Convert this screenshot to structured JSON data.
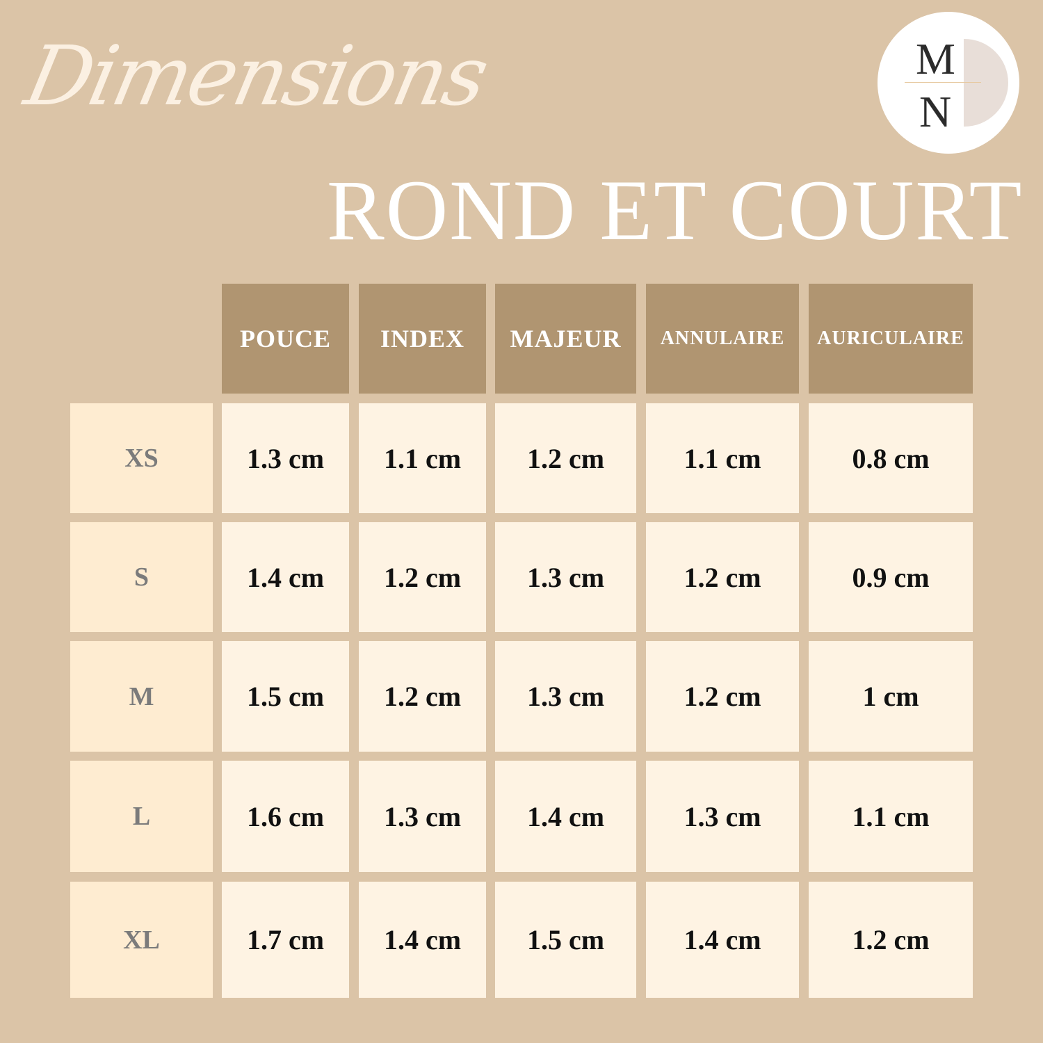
{
  "heading_script": "Dimensions",
  "title": "ROND ET COURT",
  "logo": {
    "top_letter": "M",
    "bottom_letter": "N"
  },
  "colors": {
    "background": "#dbc4a7",
    "header": "#b09571",
    "size_cell": "#feecd1",
    "value_cell": "#fef3e3"
  },
  "table": {
    "columns": [
      "POUCE",
      "INDEX",
      "MAJEUR",
      "ANNULAIRE",
      "AURICULAIRE"
    ],
    "rows": [
      {
        "size": "XS",
        "values": [
          "1.3 cm",
          "1.1 cm",
          "1.2 cm",
          "1.1 cm",
          "0.8 cm"
        ]
      },
      {
        "size": "S",
        "values": [
          "1.4 cm",
          "1.2 cm",
          "1.3 cm",
          "1.2 cm",
          "0.9 cm"
        ]
      },
      {
        "size": "M",
        "values": [
          "1.5 cm",
          "1.2 cm",
          "1.3 cm",
          "1.2 cm",
          "1 cm"
        ]
      },
      {
        "size": "L",
        "values": [
          "1.6 cm",
          "1.3 cm",
          "1.4 cm",
          "1.3 cm",
          "1.1 cm"
        ]
      },
      {
        "size": "XL",
        "values": [
          "1.7 cm",
          "1.4 cm",
          "1.5 cm",
          "1.4 cm",
          "1.2 cm"
        ]
      }
    ]
  }
}
